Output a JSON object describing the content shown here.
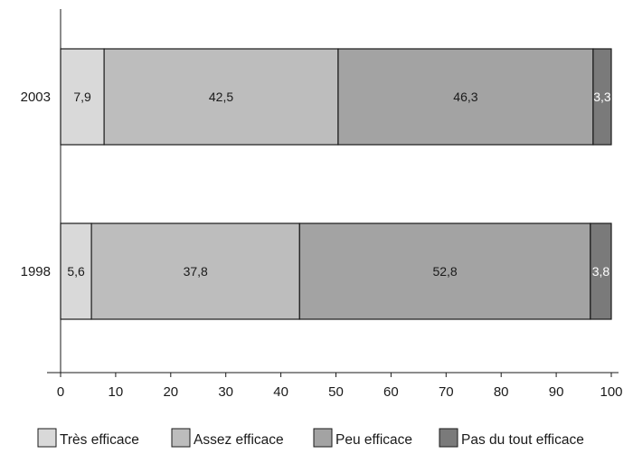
{
  "chart_data": {
    "type": "bar",
    "orientation": "horizontal",
    "stacked": true,
    "categories": [
      "2003",
      "1998"
    ],
    "series": [
      {
        "name": "Très efficace",
        "values": [
          7.9,
          5.6
        ],
        "labels": [
          "7,9",
          "5,6"
        ],
        "color": "#d9d9d9",
        "label_color": "#1a1a1a"
      },
      {
        "name": "Assez efficace",
        "values": [
          42.5,
          37.8
        ],
        "labels": [
          "42,5",
          "37,8"
        ],
        "color": "#bdbdbd",
        "label_color": "#1a1a1a"
      },
      {
        "name": "Peu efficace",
        "values": [
          46.3,
          52.8
        ],
        "labels": [
          "46,3",
          "52,8"
        ],
        "color": "#a3a3a3",
        "label_color": "#1a1a1a"
      },
      {
        "name": "Pas du tout efficace",
        "values": [
          3.3,
          3.8
        ],
        "labels": [
          "3,3",
          "3,8"
        ],
        "color": "#7a7a7a",
        "label_color": "#ffffff"
      }
    ],
    "xlim": [
      0,
      100
    ],
    "x_ticks": [
      0,
      10,
      20,
      30,
      40,
      50,
      60,
      70,
      80,
      90,
      100
    ],
    "title": "",
    "xlabel": "",
    "ylabel": "",
    "grid": false,
    "legend_position": "bottom"
  }
}
